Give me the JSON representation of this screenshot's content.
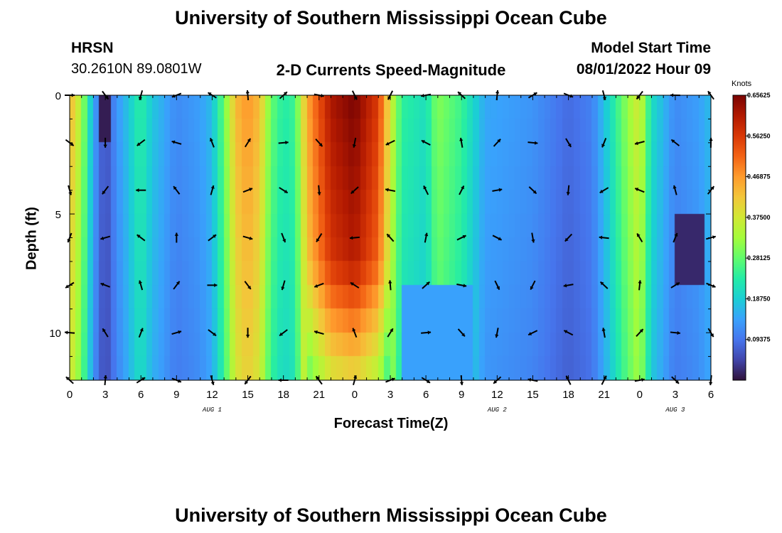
{
  "header": {
    "title": "University of Southern Mississippi Ocean Cube",
    "station": "HRSN",
    "coords": "30.2610N  89.0801W",
    "subtitle": "2-D Currents Speed-Magnitude",
    "model_label": "Model Start Time",
    "model_time": "08/01/2022 Hour 09"
  },
  "footer": {
    "title": "University of Southern Mississippi Ocean Cube"
  },
  "colors": {
    "scale": [
      "#30123b",
      "#4145ab",
      "#4675ed",
      "#39a2fc",
      "#1bcfd4",
      "#24eca6",
      "#61fc6c",
      "#a4fc3b",
      "#d1e834",
      "#f3c63a",
      "#fe9b2d",
      "#f36315",
      "#d93806",
      "#b11901",
      "#7a0403"
    ]
  },
  "chart_data": {
    "type": "heatmap",
    "title": "2-D Currents Speed-Magnitude",
    "xlabel": "Forecast Time(Z)",
    "ylabel": "Depth (ft)",
    "x_range": [
      0,
      54
    ],
    "ylim": [
      0,
      12
    ],
    "y_inverted": true,
    "x_ticks": [
      0,
      3,
      6,
      9,
      12,
      15,
      18,
      21,
      24,
      27,
      30,
      33,
      36,
      39,
      42,
      45,
      48,
      51,
      54
    ],
    "x_tick_labels": [
      "0",
      "3",
      "6",
      "9",
      "12",
      "15",
      "18",
      "21",
      "0",
      "3",
      "6",
      "9",
      "12",
      "15",
      "18",
      "21",
      "0",
      "3",
      "6"
    ],
    "y_ticks": [
      0,
      5,
      10
    ],
    "y_tick_labels": [
      "0",
      "5",
      "10"
    ],
    "date_labels": [
      {
        "x": 12,
        "text": "AUG 1"
      },
      {
        "x": 36,
        "text": "AUG 2"
      },
      {
        "x": 51,
        "text": "AUG 3"
      }
    ],
    "colorbar": {
      "label": "Knots",
      "min": 0.0,
      "max": 0.65625,
      "ticks": [
        0.65625,
        0.5625,
        0.46875,
        0.375,
        0.28125,
        0.1875,
        0.09375
      ],
      "tick_labels": [
        "0.65625",
        "0.56250",
        "0.46875",
        "0.37500",
        "0.28125",
        "0.18750",
        "0.09375"
      ]
    },
    "arrow_depths": [
      0,
      2,
      4,
      6,
      8,
      10,
      12
    ],
    "arrow_times": [
      0,
      3,
      6,
      9,
      12,
      15,
      18,
      21,
      24,
      27,
      30,
      33,
      36,
      39,
      42,
      45,
      48,
      51,
      54
    ],
    "speed_profile": [
      {
        "t": 0,
        "v": 0.42
      },
      {
        "t": 1,
        "v": 0.32
      },
      {
        "t": 2,
        "v": 0.14
      },
      {
        "t": 3,
        "v": 0.05
      },
      {
        "t": 4,
        "v": 0.12
      },
      {
        "t": 5,
        "v": 0.17
      },
      {
        "t": 6,
        "v": 0.23
      },
      {
        "t": 7,
        "v": 0.17
      },
      {
        "t": 9,
        "v": 0.11
      },
      {
        "t": 11,
        "v": 0.13
      },
      {
        "t": 12,
        "v": 0.16
      },
      {
        "t": 13,
        "v": 0.27
      },
      {
        "t": 14,
        "v": 0.41
      },
      {
        "t": 15,
        "v": 0.45
      },
      {
        "t": 16,
        "v": 0.41
      },
      {
        "t": 17,
        "v": 0.27
      },
      {
        "t": 18,
        "v": 0.22
      },
      {
        "t": 19,
        "v": 0.24
      },
      {
        "t": 20,
        "v": 0.43
      },
      {
        "t": 22,
        "v": 0.58
      },
      {
        "t": 24,
        "v": 0.62
      },
      {
        "t": 26,
        "v": 0.53
      },
      {
        "t": 27,
        "v": 0.36
      },
      {
        "t": 28,
        "v": 0.23
      },
      {
        "t": 30,
        "v": 0.2
      },
      {
        "t": 31,
        "v": 0.29
      },
      {
        "t": 33,
        "v": 0.24
      },
      {
        "t": 35,
        "v": 0.14
      },
      {
        "t": 39,
        "v": 0.12
      },
      {
        "t": 42,
        "v": 0.08
      },
      {
        "t": 44,
        "v": 0.1
      },
      {
        "t": 45,
        "v": 0.16
      },
      {
        "t": 47,
        "v": 0.3
      },
      {
        "t": 48,
        "v": 0.36
      },
      {
        "t": 49,
        "v": 0.2
      },
      {
        "t": 51,
        "v": 0.11
      },
      {
        "t": 53,
        "v": 0.13
      },
      {
        "t": 54,
        "v": 0.16
      }
    ]
  }
}
